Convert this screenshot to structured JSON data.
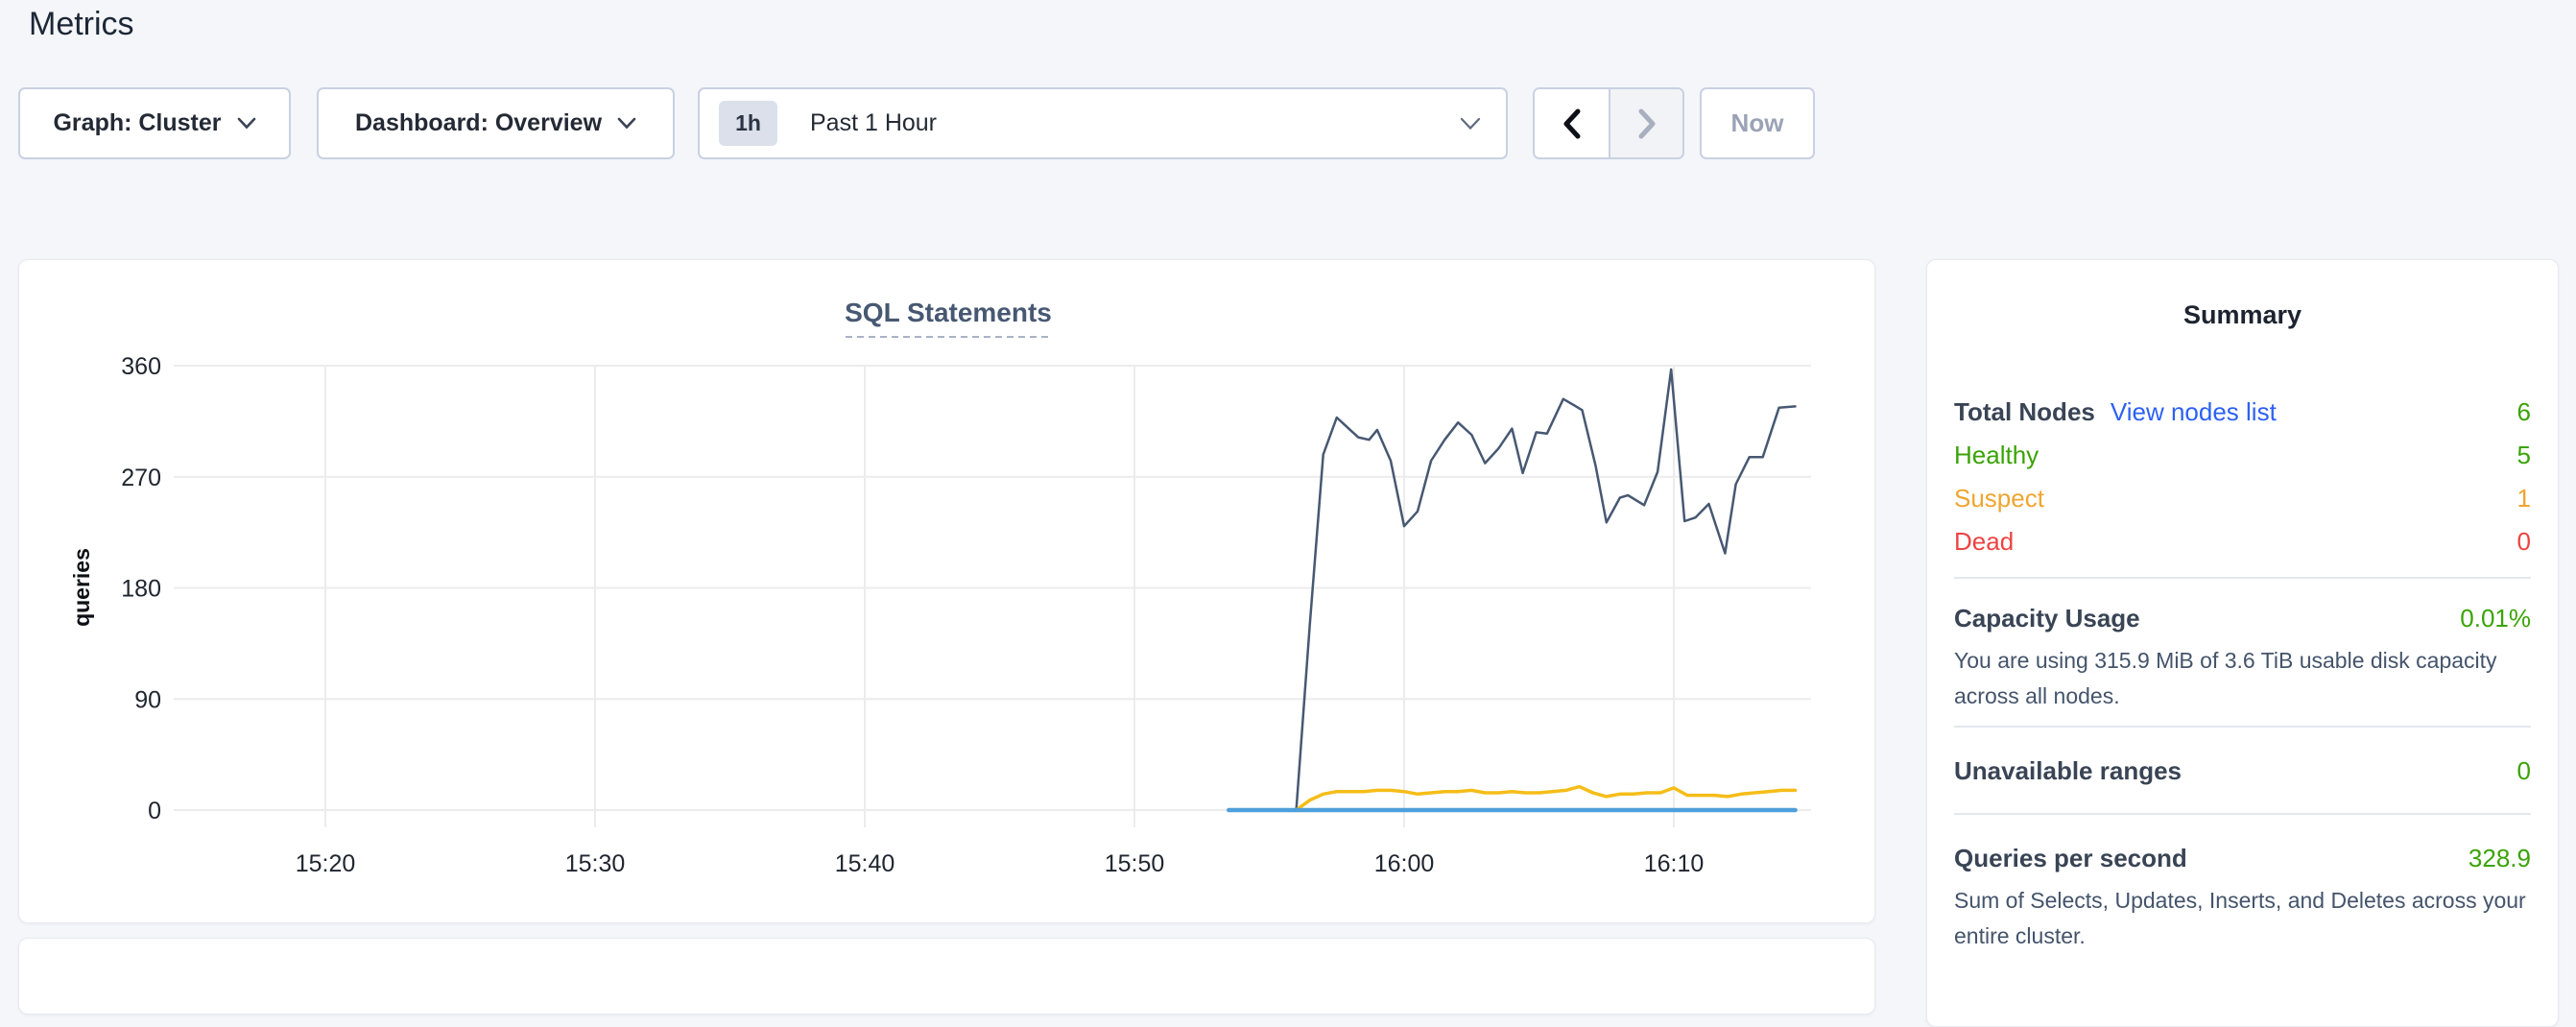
{
  "page": {
    "title": "Metrics"
  },
  "toolbar": {
    "graph_dropdown": {
      "value": "Graph: Cluster"
    },
    "dashboard_dropdown": {
      "value": "Dashboard: Overview"
    },
    "time_selector": {
      "badge": "1h",
      "label": "Past 1 Hour"
    },
    "now_button": "Now"
  },
  "chart_data": {
    "type": "line",
    "title": "SQL Statements",
    "ylabel": "queries",
    "ylim": [
      0,
      360
    ],
    "y_ticks": [
      0,
      90,
      180,
      270,
      360
    ],
    "x_unit": "minutes after 15:00",
    "x_range": [
      14.4,
      75.1
    ],
    "x_ticks": [
      {
        "minutes": 20,
        "label": "15:20"
      },
      {
        "minutes": 30,
        "label": "15:30"
      },
      {
        "minutes": 40,
        "label": "15:40"
      },
      {
        "minutes": 50,
        "label": "15:50"
      },
      {
        "minutes": 60,
        "label": "16:00"
      },
      {
        "minutes": 70,
        "label": "16:10"
      }
    ],
    "grid": true,
    "legend": "none",
    "series": [
      {
        "id": "series-1",
        "color": "#475872",
        "stroke_width": 2.5,
        "points": [
          [
            53.5,
            0
          ],
          [
            54,
            0
          ],
          [
            54.5,
            0
          ],
          [
            55,
            0
          ],
          [
            55.5,
            0
          ],
          [
            56,
            0
          ],
          [
            56.5,
            150
          ],
          [
            57,
            288
          ],
          [
            57.5,
            318
          ],
          [
            58,
            308
          ],
          [
            58.3,
            302
          ],
          [
            58.7,
            300
          ],
          [
            59,
            308
          ],
          [
            59.5,
            283
          ],
          [
            60,
            230
          ],
          [
            60.5,
            242
          ],
          [
            61,
            283
          ],
          [
            61.5,
            300
          ],
          [
            62,
            314
          ],
          [
            62.5,
            304
          ],
          [
            63,
            281
          ],
          [
            63.5,
            293
          ],
          [
            64,
            309
          ],
          [
            64.4,
            273
          ],
          [
            64.9,
            306
          ],
          [
            65.3,
            305
          ],
          [
            65.9,
            333
          ],
          [
            66.3,
            328
          ],
          [
            66.6,
            324
          ],
          [
            67.1,
            279
          ],
          [
            67.5,
            233
          ],
          [
            68,
            253
          ],
          [
            68.3,
            255
          ],
          [
            68.9,
            247
          ],
          [
            69.4,
            274
          ],
          [
            69.9,
            357
          ],
          [
            70.4,
            234
          ],
          [
            70.8,
            237
          ],
          [
            71.3,
            248
          ],
          [
            71.9,
            208
          ],
          [
            72.3,
            264
          ],
          [
            72.8,
            286
          ],
          [
            73.3,
            286
          ],
          [
            73.9,
            326
          ],
          [
            74.5,
            327
          ]
        ]
      },
      {
        "id": "series-2",
        "color": "#f5bd18",
        "stroke_width": 3.5,
        "points": [
          [
            53.5,
            0
          ],
          [
            54.5,
            0
          ],
          [
            55.5,
            0
          ],
          [
            56,
            0
          ],
          [
            56.5,
            8
          ],
          [
            57,
            13
          ],
          [
            57.5,
            15
          ],
          [
            58,
            15
          ],
          [
            58.5,
            15
          ],
          [
            59,
            16
          ],
          [
            59.5,
            16
          ],
          [
            60,
            15
          ],
          [
            60.5,
            13
          ],
          [
            61,
            14
          ],
          [
            61.5,
            15
          ],
          [
            62,
            15
          ],
          [
            62.5,
            16
          ],
          [
            63,
            14
          ],
          [
            63.5,
            14
          ],
          [
            64,
            15
          ],
          [
            64.5,
            14
          ],
          [
            65,
            14
          ],
          [
            65.5,
            15
          ],
          [
            66,
            16
          ],
          [
            66.5,
            19
          ],
          [
            67,
            14
          ],
          [
            67.5,
            11
          ],
          [
            68,
            13
          ],
          [
            68.5,
            13
          ],
          [
            69,
            14
          ],
          [
            69.5,
            14
          ],
          [
            70,
            18
          ],
          [
            70.5,
            12
          ],
          [
            71,
            12
          ],
          [
            71.5,
            12
          ],
          [
            72,
            11
          ],
          [
            72.5,
            13
          ],
          [
            73,
            14
          ],
          [
            73.5,
            15
          ],
          [
            74,
            16
          ],
          [
            74.5,
            16
          ]
        ]
      },
      {
        "id": "series-3",
        "color": "#4f9fdc",
        "stroke_width": 4.5,
        "points": [
          [
            53.5,
            0
          ],
          [
            74.5,
            0
          ]
        ]
      }
    ]
  },
  "summary": {
    "title": "Summary",
    "nodes": {
      "total_label": "Total Nodes",
      "link": "View nodes list",
      "total_value": "6",
      "rows": [
        {
          "label": "Healthy",
          "value": "5"
        },
        {
          "label": "Suspect",
          "value": "1"
        },
        {
          "label": "Dead",
          "value": "0"
        }
      ]
    },
    "capacity": {
      "label": "Capacity Usage",
      "value": "0.01%",
      "desc": "You are using 315.9 MiB of 3.6 TiB usable disk capacity across all nodes."
    },
    "unavailable": {
      "label": "Unavailable ranges",
      "value": "0"
    },
    "qps": {
      "label": "Queries per second",
      "value": "328.9",
      "desc": "Sum of Selects, Updates, Inserts, and Deletes across your entire cluster."
    }
  }
}
